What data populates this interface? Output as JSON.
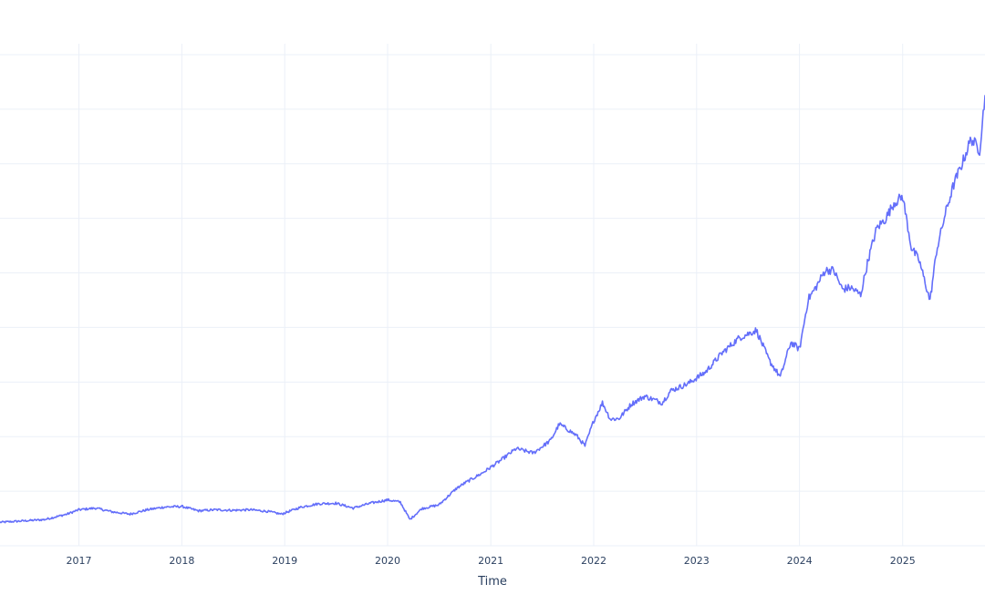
{
  "chart_data": {
    "type": "line",
    "title": "",
    "xlabel": "Time",
    "ylabel": "",
    "x_tick_labels": [
      "2017",
      "2018",
      "2019",
      "2020",
      "2021",
      "2022",
      "2023",
      "2024",
      "2025"
    ],
    "xlim": [
      "2016-03-27",
      "2025-10-20"
    ],
    "ylim": [
      0,
      9.2
    ],
    "y_tick_labels_visible": false,
    "grid": true,
    "legend": "none",
    "colors": {
      "line": "#636efa",
      "grid": "#ebf0f8",
      "text": "#2a3f5f",
      "background": "#ffffff"
    },
    "series": [
      {
        "x": [
          "2016-03-27",
          "2016-06-01",
          "2016-09-01",
          "2016-11-20",
          "2017-01-01",
          "2017-03-01",
          "2017-05-01",
          "2017-07-01",
          "2017-09-01",
          "2017-11-01",
          "2018-01-01",
          "2018-03-01",
          "2018-05-01",
          "2018-07-01",
          "2018-09-01",
          "2018-11-01",
          "2018-12-20",
          "2019-03-01",
          "2019-05-01",
          "2019-07-01",
          "2019-09-01",
          "2019-11-01",
          "2020-01-01",
          "2020-02-15",
          "2020-03-20",
          "2020-05-01",
          "2020-07-01",
          "2020-09-01",
          "2020-10-01",
          "2020-12-01",
          "2021-02-01",
          "2021-04-01",
          "2021-06-01",
          "2021-08-01",
          "2021-09-01",
          "2021-10-01",
          "2021-11-01",
          "2021-12-01",
          "2022-01-01",
          "2022-02-01",
          "2022-03-01",
          "2022-04-01",
          "2022-05-15",
          "2022-07-01",
          "2022-08-01",
          "2022-09-01",
          "2022-10-01",
          "2022-12-01",
          "2023-02-01",
          "2023-04-01",
          "2023-06-01",
          "2023-08-01",
          "2023-09-15",
          "2023-10-25",
          "2023-12-01",
          "2024-01-01",
          "2024-02-01",
          "2024-03-01",
          "2024-04-01",
          "2024-05-01",
          "2024-06-01",
          "2024-07-01",
          "2024-08-05",
          "2024-09-01",
          "2024-10-01",
          "2024-11-01",
          "2024-12-01",
          "2025-01-01",
          "2025-02-01",
          "2025-03-01",
          "2025-04-08",
          "2025-05-01",
          "2025-06-01",
          "2025-07-01",
          "2025-08-01",
          "2025-09-01",
          "2025-10-01",
          "2025-10-20"
        ],
        "y": [
          0.43,
          0.45,
          0.48,
          0.58,
          0.66,
          0.69,
          0.62,
          0.58,
          0.66,
          0.71,
          0.72,
          0.64,
          0.66,
          0.65,
          0.66,
          0.63,
          0.58,
          0.71,
          0.77,
          0.78,
          0.69,
          0.78,
          0.84,
          0.8,
          0.48,
          0.68,
          0.75,
          1.05,
          1.15,
          1.33,
          1.55,
          1.78,
          1.7,
          1.93,
          2.23,
          2.13,
          2.02,
          1.83,
          2.29,
          2.62,
          2.32,
          2.33,
          2.6,
          2.74,
          2.68,
          2.62,
          2.84,
          2.97,
          3.18,
          3.53,
          3.81,
          3.95,
          3.4,
          3.09,
          3.73,
          3.6,
          4.52,
          4.75,
          5.05,
          5.05,
          4.7,
          4.73,
          4.6,
          5.25,
          5.82,
          5.99,
          6.28,
          6.4,
          5.46,
          5.22,
          4.49,
          5.4,
          6.08,
          6.62,
          7.02,
          7.46,
          7.25,
          8.25
        ]
      }
    ]
  }
}
